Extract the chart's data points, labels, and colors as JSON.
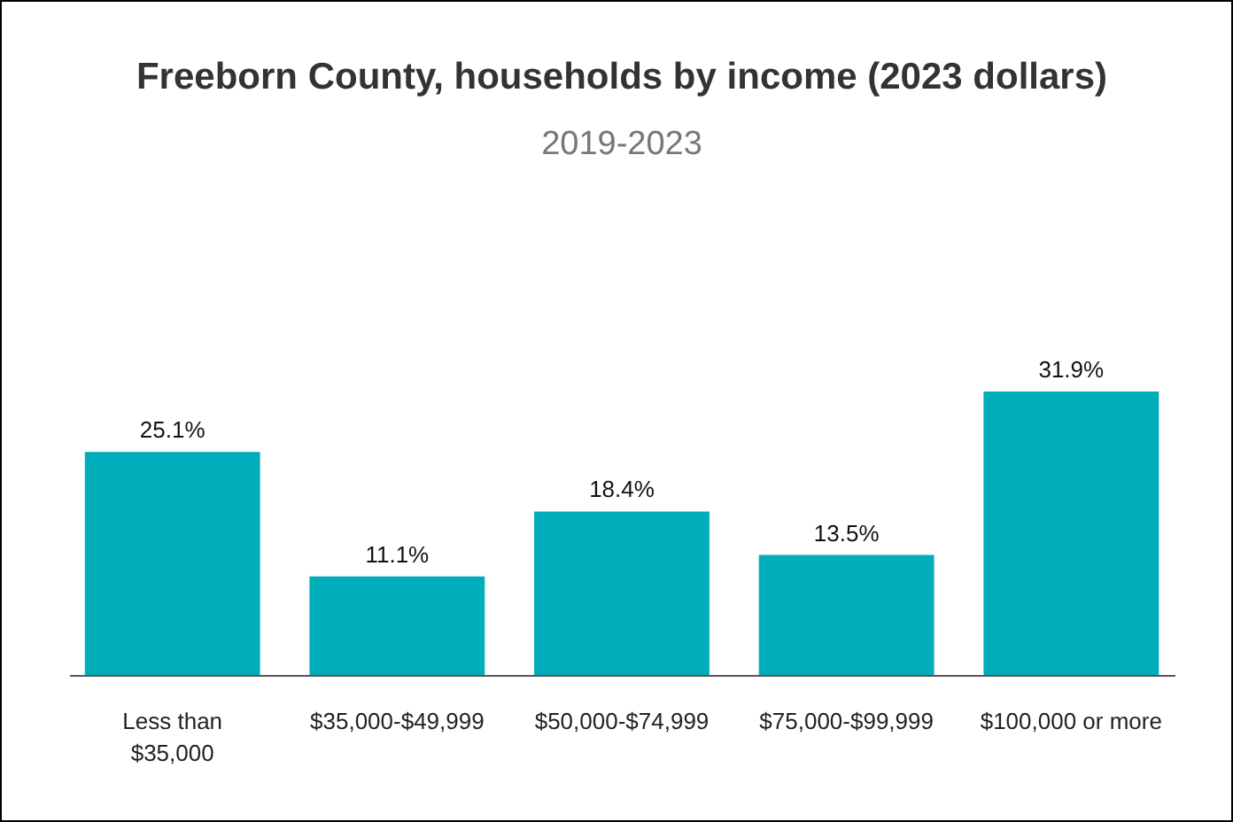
{
  "chart_data": {
    "type": "bar",
    "title": "Freeborn County, households by income (2023 dollars)",
    "subtitle": "2019-2023",
    "categories": [
      "Less than $35,000",
      "$35,000-$49,999",
      "$50,000-$74,999",
      "$75,000-$99,999",
      "$100,000 or more"
    ],
    "values": [
      25.1,
      11.1,
      18.4,
      13.5,
      31.9
    ],
    "value_labels": [
      "25.1%",
      "11.1%",
      "18.4%",
      "13.5%",
      "31.9%"
    ],
    "color": "#00adbb"
  }
}
